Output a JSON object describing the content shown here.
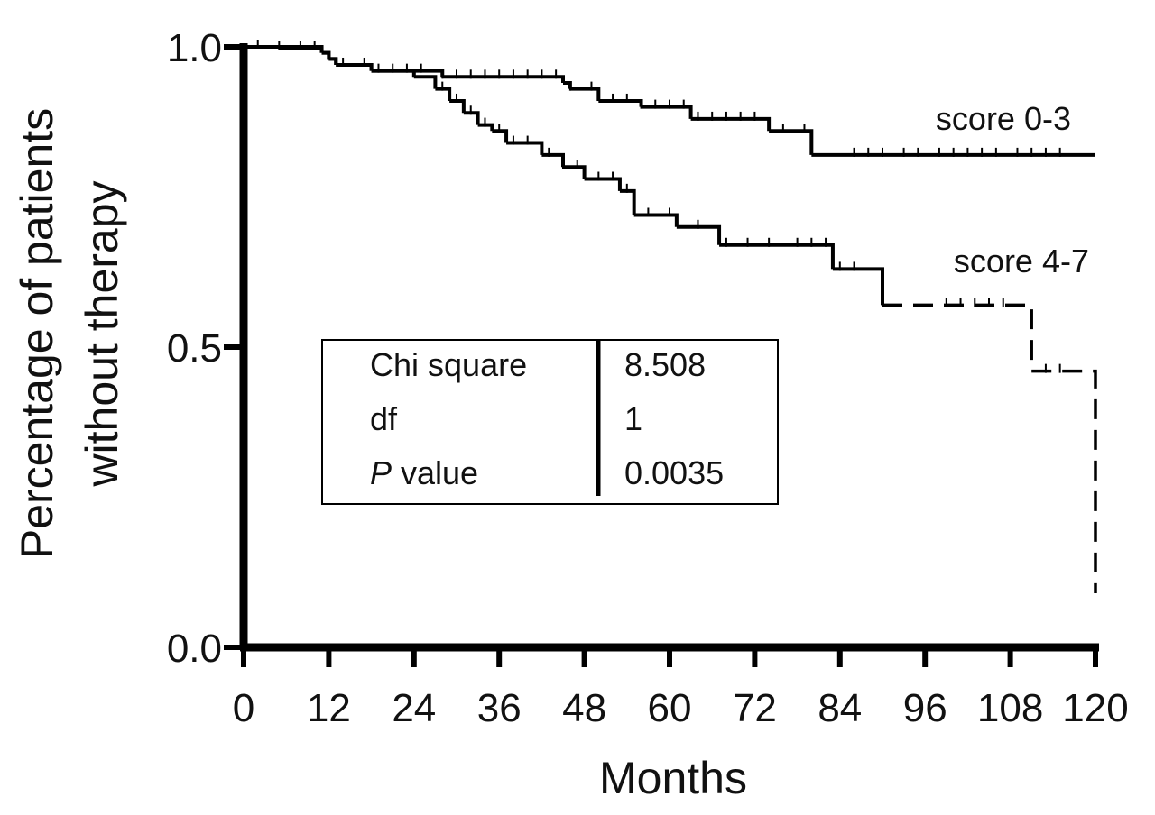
{
  "chart_data": {
    "type": "line",
    "subtype": "kaplan-meier",
    "title": "",
    "xlabel": "Months",
    "ylabel": [
      "Percentage of patients",
      "without therapy"
    ],
    "xlim": [
      0,
      120
    ],
    "ylim": [
      0,
      1
    ],
    "x_ticks": [
      "0",
      "12",
      "24",
      "36",
      "48",
      "60",
      "72",
      "84",
      "96",
      "108",
      "120"
    ],
    "y_ticks": [
      "0.0",
      "0.5",
      "1.0"
    ],
    "grid": false,
    "series": [
      {
        "name": "score 0-3",
        "line_style": "solid",
        "steps": [
          [
            0,
            1.0
          ],
          [
            5,
            0.998
          ],
          [
            11,
            0.99
          ],
          [
            12,
            0.98
          ],
          [
            13,
            0.97
          ],
          [
            18,
            0.96
          ],
          [
            28,
            0.95
          ],
          [
            45,
            0.94
          ],
          [
            46,
            0.93
          ],
          [
            50,
            0.91
          ],
          [
            56,
            0.9
          ],
          [
            63,
            0.88
          ],
          [
            74,
            0.86
          ],
          [
            80,
            0.82
          ],
          [
            120,
            0.82
          ]
        ],
        "censored_x": [
          2,
          5,
          8,
          10,
          14,
          17,
          19,
          21,
          23,
          25,
          28,
          30,
          32,
          34,
          36,
          38,
          40,
          42,
          44,
          46,
          49,
          52,
          54,
          56,
          58,
          60,
          62,
          64,
          66,
          68,
          70,
          72,
          76,
          79,
          86,
          88,
          90,
          93,
          95,
          98,
          100,
          102,
          104,
          106,
          109,
          111,
          113,
          115
        ]
      },
      {
        "name": "score 4-7",
        "line_style": "solid-then-dashed",
        "steps": [
          [
            0,
            1.0
          ],
          [
            11,
            0.99
          ],
          [
            12,
            0.98
          ],
          [
            13,
            0.97
          ],
          [
            18,
            0.96
          ],
          [
            24,
            0.95
          ],
          [
            27,
            0.93
          ],
          [
            29,
            0.91
          ],
          [
            31,
            0.89
          ],
          [
            33,
            0.87
          ],
          [
            35,
            0.86
          ],
          [
            37,
            0.84
          ],
          [
            42,
            0.82
          ],
          [
            45,
            0.8
          ],
          [
            48,
            0.78
          ],
          [
            53,
            0.76
          ],
          [
            55,
            0.72
          ],
          [
            61,
            0.7
          ],
          [
            67,
            0.67
          ],
          [
            83,
            0.63
          ],
          [
            90,
            0.57
          ],
          [
            111,
            0.46
          ],
          [
            120,
            0.09
          ]
        ],
        "dashed_from_x": 90,
        "censored_x": [
          28,
          30,
          32,
          34,
          36,
          38,
          40,
          43,
          45,
          47,
          50,
          52,
          54,
          57,
          60,
          64,
          68,
          71,
          74,
          78,
          80,
          82,
          84,
          86,
          99,
          101,
          103,
          105,
          107,
          113,
          115
        ]
      }
    ],
    "stats_table": [
      {
        "label": "Chi square",
        "value": "8.508"
      },
      {
        "label": "df",
        "value": "1"
      },
      {
        "label_italic": "P",
        "label": " value",
        "value": "0.0035"
      }
    ]
  }
}
